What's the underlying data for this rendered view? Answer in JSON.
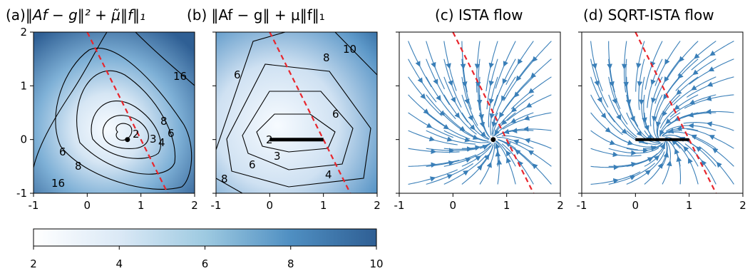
{
  "chart_data": [
    {
      "type": "heatmap",
      "panel": "a",
      "title_prefix": "(a)",
      "title_formula": "‖Af − g‖² + μ̃‖f‖₁",
      "x_ticks": [
        "-1",
        "0",
        "1",
        "2"
      ],
      "y_ticks": [
        "2",
        "1",
        "0",
        "-1"
      ],
      "xlim": [
        -1,
        2
      ],
      "ylim": [
        -1,
        2
      ],
      "contour_labels": [
        "2",
        "3",
        "4",
        "6",
        "6",
        "8",
        "8",
        "16",
        "16"
      ],
      "minimizer": [
        0.75,
        0.0
      ],
      "dashed_line": [
        [
          0,
          2
        ],
        [
          1.5,
          -1
        ]
      ]
    },
    {
      "type": "heatmap",
      "panel": "b",
      "title_prefix": "(b)",
      "title_formula": "‖Af − g‖ + μ‖f‖₁",
      "x_ticks": [
        "-1",
        "0",
        "1",
        "2"
      ],
      "y_ticks": [
        "2",
        "1",
        "0",
        "-1"
      ],
      "xlim": [
        -1,
        2
      ],
      "ylim": [
        -1,
        2
      ],
      "contour_labels": [
        "2",
        "3",
        "4",
        "6",
        "6",
        "6",
        "8",
        "8",
        "10"
      ],
      "minimizer_segment": [
        [
          0,
          0
        ],
        [
          1,
          0
        ]
      ],
      "dashed_line": [
        [
          0,
          2
        ],
        [
          1.5,
          -1
        ]
      ]
    },
    {
      "type": "streamplot",
      "panel": "c",
      "title": "(c) ISTA flow",
      "x_ticks": [
        "-1",
        "0",
        "1",
        "2"
      ],
      "y_ticks": [
        "2",
        "1",
        "0",
        "-1"
      ],
      "xlim": [
        -1,
        2
      ],
      "ylim": [
        -1,
        2
      ],
      "fixed_point": [
        0.75,
        0.0
      ],
      "dashed_line": [
        [
          0,
          2
        ],
        [
          1.5,
          -1
        ]
      ]
    },
    {
      "type": "streamplot",
      "panel": "d",
      "title": "(d) SQRT-ISTA flow",
      "x_ticks": [
        "-1",
        "0",
        "1",
        "2"
      ],
      "y_ticks": [
        "2",
        "1",
        "0",
        "-1"
      ],
      "xlim": [
        -1,
        2
      ],
      "ylim": [
        -1,
        2
      ],
      "fixed_segment": [
        [
          0,
          0
        ],
        [
          1,
          0
        ]
      ],
      "dashed_line": [
        [
          0,
          2
        ],
        [
          1.5,
          -1
        ]
      ]
    },
    {
      "type": "colorbar",
      "ticks": [
        "2",
        "4",
        "6",
        "8",
        "10"
      ],
      "range": [
        2,
        10
      ],
      "color_low": "#ffffff",
      "color_high": "#2f5f94"
    }
  ]
}
